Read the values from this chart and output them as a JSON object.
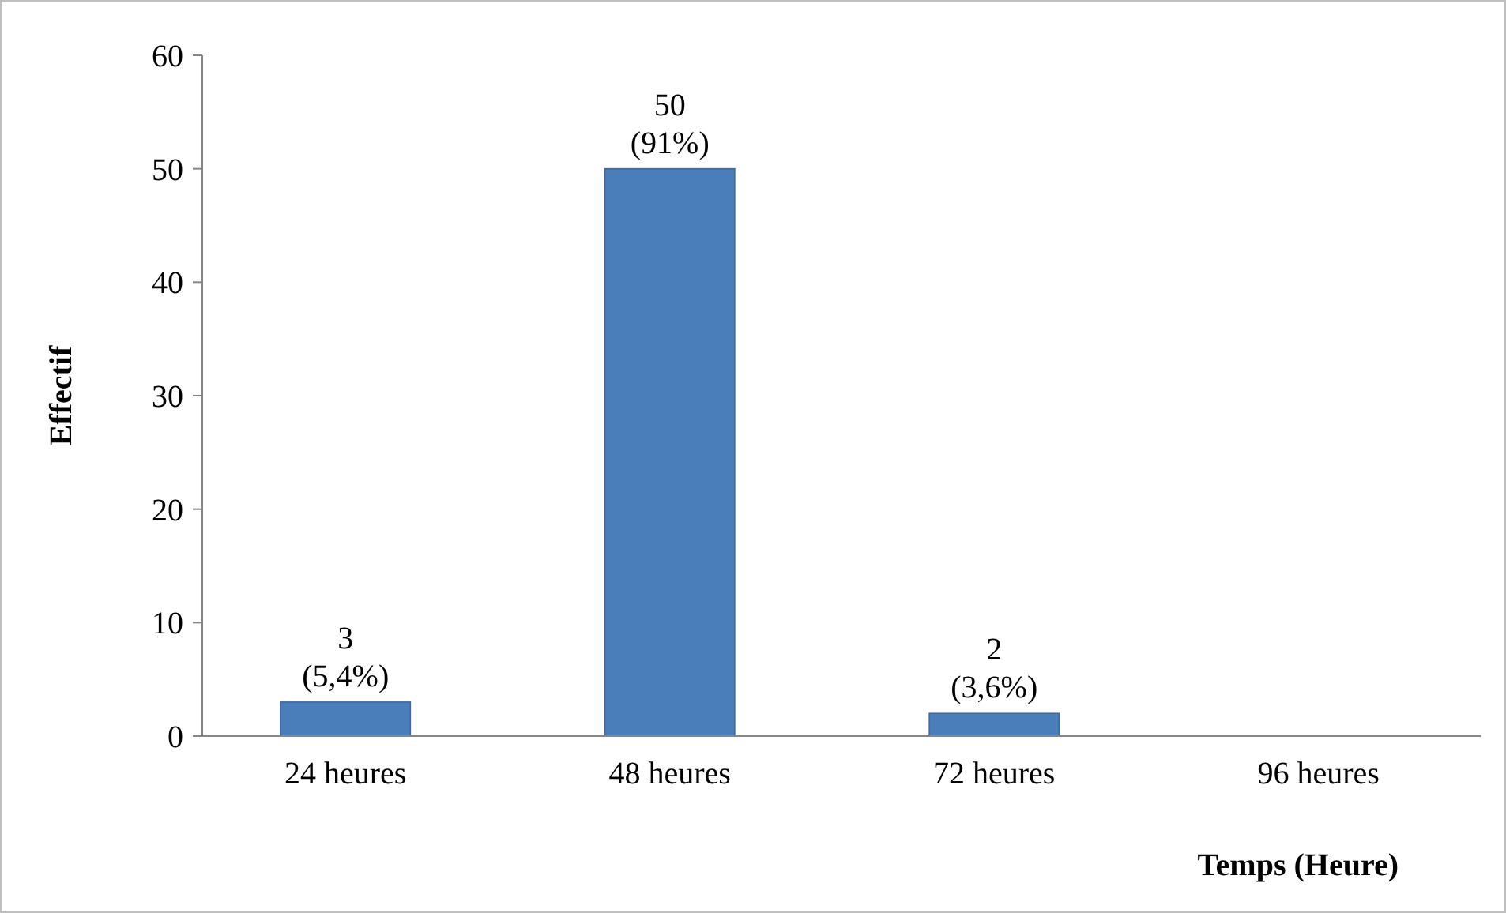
{
  "chart_data": {
    "type": "bar",
    "xlabel": "Temps (Heure)",
    "ylabel": "Effectif",
    "categories": [
      "24 heures",
      "48 heures",
      "72 heures",
      "96 heures"
    ],
    "values": [
      3,
      50,
      2,
      0
    ],
    "value_labels": [
      "3\n(5,4%)",
      "50\n(91%)",
      "2\n(3,6%)",
      null
    ],
    "color": "#4a7ebb",
    "ylim": [
      0,
      60
    ],
    "yticks": [
      0,
      10,
      20,
      30,
      40,
      50,
      60
    ],
    "grid": false
  }
}
